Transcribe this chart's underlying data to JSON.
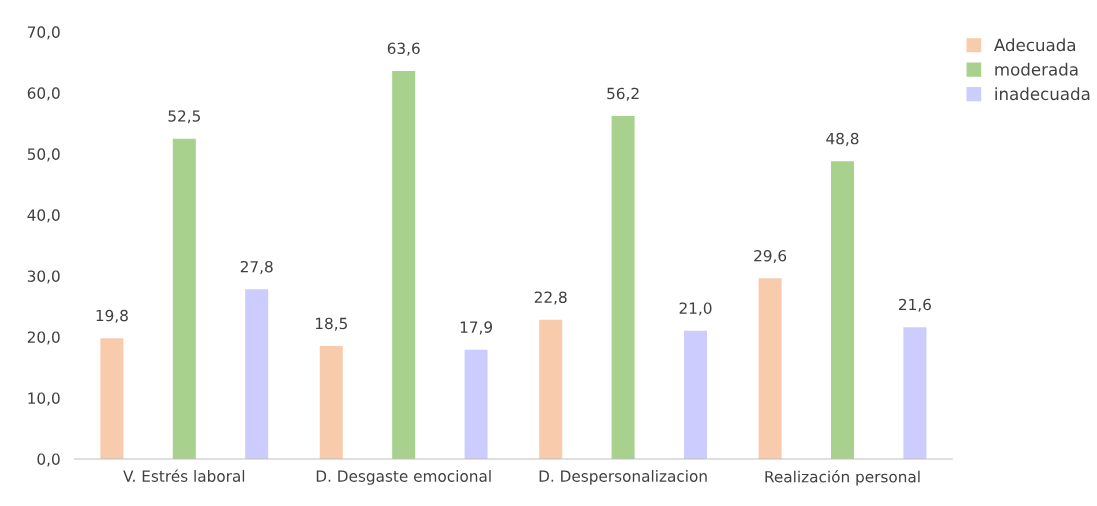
{
  "chart_data": {
    "type": "bar",
    "categories": [
      "V. Estrés laboral",
      "D. Desgaste emocional",
      "D. Despersonalizacion",
      "Realización personal"
    ],
    "series": [
      {
        "name": "Adecuada",
        "color": "#f8cbad",
        "values": [
          19.8,
          18.5,
          22.8,
          29.6
        ],
        "value_labels": [
          "19,8",
          "18,5",
          "22,8",
          "29,6"
        ]
      },
      {
        "name": "moderada",
        "color": "#a9d18e",
        "values": [
          52.5,
          63.6,
          56.2,
          48.8
        ],
        "value_labels": [
          "52,5",
          "63,6",
          "56,2",
          "48,8"
        ]
      },
      {
        "name": "inadecuada",
        "color": "#ccccff",
        "values": [
          27.8,
          17.9,
          21.0,
          21.6
        ],
        "value_labels": [
          "27,8",
          "17,9",
          "21,0",
          "21,6"
        ]
      }
    ],
    "ylim": [
      0,
      70
    ],
    "yticks": [
      {
        "value": 0,
        "label": "0,0"
      },
      {
        "value": 10,
        "label": "10,0"
      },
      {
        "value": 20,
        "label": "20,0"
      },
      {
        "value": 30,
        "label": "30,0"
      },
      {
        "value": 40,
        "label": "40,0"
      },
      {
        "value": 50,
        "label": "50,0"
      },
      {
        "value": 60,
        "label": "60,0"
      },
      {
        "value": 70,
        "label": "70,0"
      }
    ],
    "grid": false,
    "legend": "top right"
  }
}
